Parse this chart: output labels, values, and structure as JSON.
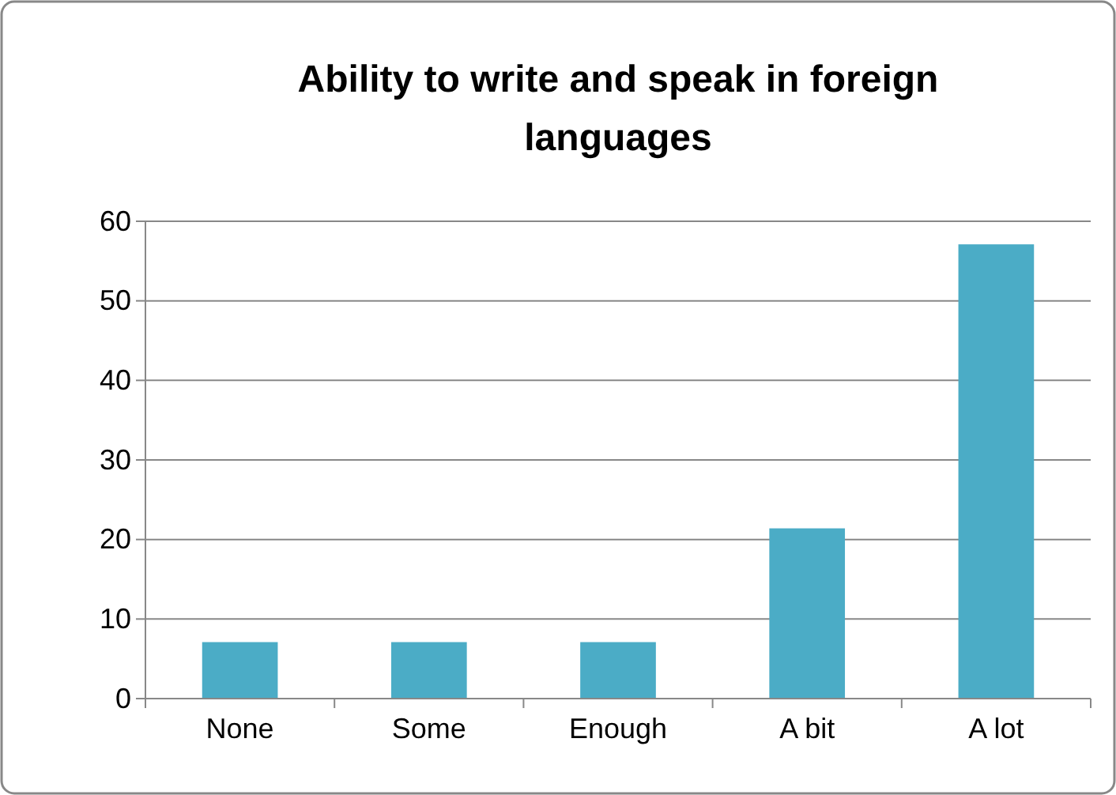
{
  "chart_data": {
    "type": "bar",
    "title": "Ability to write and speak in foreign languages",
    "categories": [
      "None",
      "Some",
      "Enough",
      "A bit",
      "A lot"
    ],
    "values": [
      7.1,
      7.1,
      7.1,
      21.4,
      57.1
    ],
    "color": "#4bacc6",
    "ylim": [
      0,
      60
    ],
    "yticks": [
      0,
      10,
      20,
      30,
      40,
      50,
      60
    ],
    "grid": "y"
  }
}
